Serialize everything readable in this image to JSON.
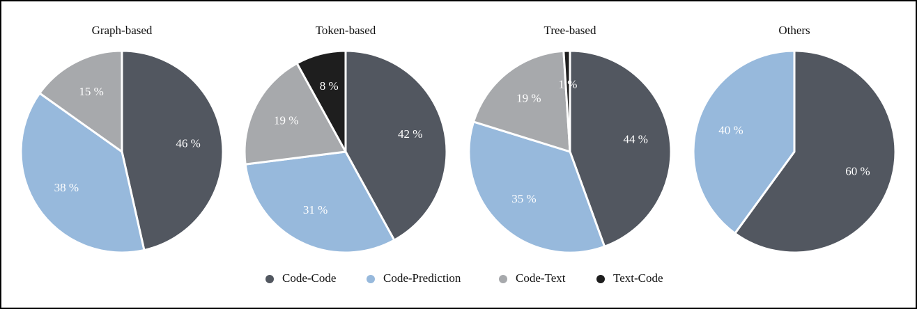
{
  "legend": {
    "categories": [
      "Code-Code",
      "Code-Prediction",
      "Code-Text",
      "Text-Code"
    ],
    "colors": [
      "#525760",
      "#97b9dc",
      "#a7a9ac",
      "#1e1e1e"
    ]
  },
  "chart_data": [
    {
      "type": "pie",
      "title": "Graph-based",
      "values": [
        46,
        38,
        15,
        null
      ],
      "value_labels": [
        "46 %",
        "38 %",
        "15 %",
        null
      ]
    },
    {
      "type": "pie",
      "title": "Token-based",
      "values": [
        42,
        31,
        19,
        8
      ],
      "value_labels": [
        "42 %",
        "31 %",
        "19 %",
        "8 %"
      ]
    },
    {
      "type": "pie",
      "title": "Tree-based",
      "values": [
        44,
        35,
        19,
        1
      ],
      "value_labels": [
        "44 %",
        "35 %",
        "19 %",
        "1 %"
      ]
    },
    {
      "type": "pie",
      "title": "Others",
      "values": [
        60,
        40,
        null,
        null
      ],
      "value_labels": [
        "60 %",
        "40 %",
        null,
        null
      ]
    }
  ]
}
